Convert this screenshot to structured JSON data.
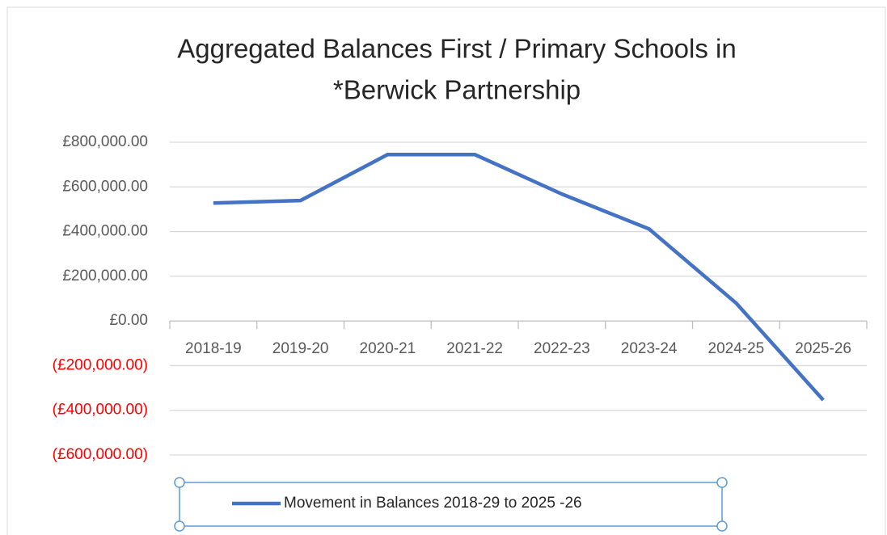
{
  "chart_data": {
    "type": "line",
    "title": [
      "Aggregated Balances First / Primary Schools in",
      "*Berwick Partnership"
    ],
    "categories": [
      "2018-19",
      "2019-20",
      "2020-21",
      "2021-22",
      "2022-23",
      "2023-24",
      "2024-25",
      "2025-26"
    ],
    "series": [
      {
        "name": "Movement in Balances 2018-29 to 2025 -26",
        "color": "#4472c4",
        "values": [
          528000,
          539000,
          745000,
          745000,
          568000,
          412000,
          80000,
          -354000
        ]
      }
    ],
    "ylim": [
      -600000,
      800000
    ],
    "yticks": [
      {
        "value": 800000,
        "label": "£800,000.00"
      },
      {
        "value": 600000,
        "label": "£600,000.00"
      },
      {
        "value": 400000,
        "label": "£400,000.00"
      },
      {
        "value": 200000,
        "label": "£200,000.00"
      },
      {
        "value": 0,
        "label": "£0.00"
      },
      {
        "value": -200000,
        "label": "(£200,000.00)"
      },
      {
        "value": -400000,
        "label": "(£400,000.00)"
      },
      {
        "value": -600000,
        "label": "(£600,000.00)"
      }
    ],
    "negative_tick_color": "#ff0000",
    "grid": true,
    "legend": "bottom"
  }
}
